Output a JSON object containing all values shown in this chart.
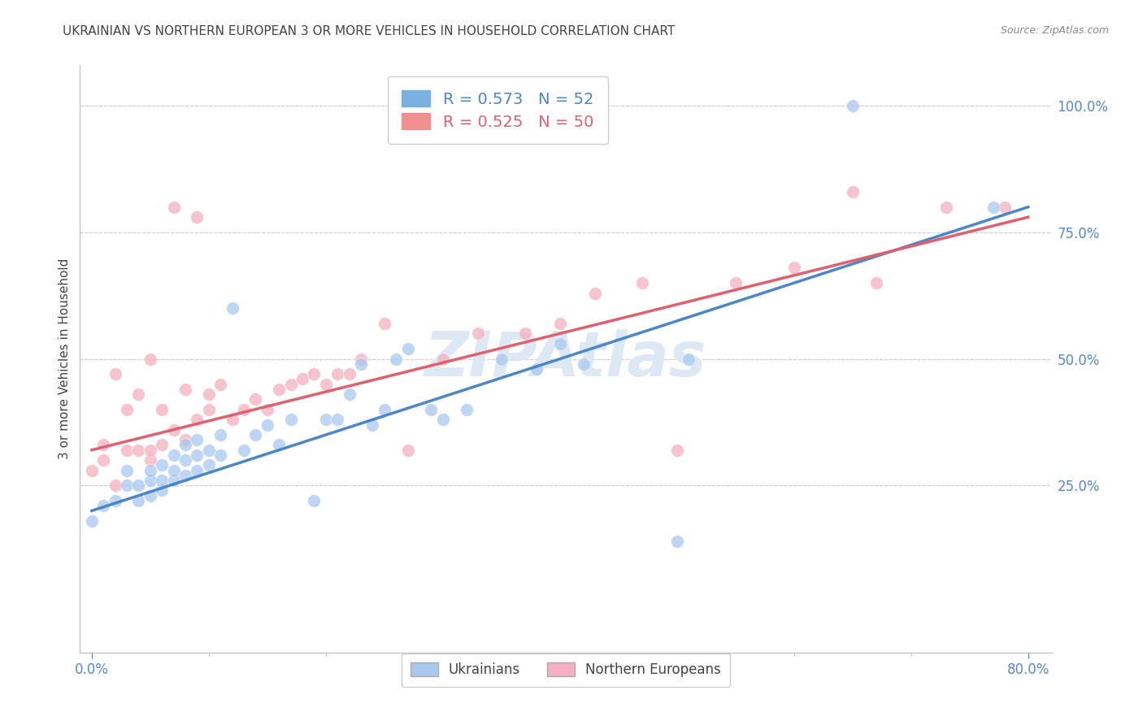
{
  "title": "UKRAINIAN VS NORTHERN EUROPEAN 3 OR MORE VEHICLES IN HOUSEHOLD CORRELATION CHART",
  "source": "Source: ZipAtlas.com",
  "ylabel": "3 or more Vehicles in Household",
  "ytick_labels": [
    "25.0%",
    "50.0%",
    "75.0%",
    "100.0%"
  ],
  "ytick_values": [
    0.25,
    0.5,
    0.75,
    1.0
  ],
  "xtick_labels": [
    "0.0%",
    "80.0%"
  ],
  "xtick_values": [
    0.0,
    0.8
  ],
  "xlim": [
    -0.01,
    0.82
  ],
  "ylim": [
    -0.08,
    1.08
  ],
  "legend_color1": "#7ab0e0",
  "legend_color2": "#f09090",
  "line_color1": "#4a86c8",
  "line_color2": "#e06070",
  "scatter_color1": "#a8c8f0",
  "scatter_color2": "#f4b0c0",
  "watermark_color": "#dde8f5",
  "background_color": "#ffffff",
  "grid_color": "#cccccc",
  "axis_label_color": "#5588cc",
  "ukr_line_start_y": 0.2,
  "ukr_line_end_y": 0.8,
  "ne_line_start_y": 0.32,
  "ne_line_end_y": 0.78,
  "ukrainians_x": [
    0.0,
    0.01,
    0.02,
    0.03,
    0.03,
    0.04,
    0.04,
    0.05,
    0.05,
    0.05,
    0.06,
    0.06,
    0.06,
    0.07,
    0.07,
    0.07,
    0.08,
    0.08,
    0.08,
    0.09,
    0.09,
    0.09,
    0.1,
    0.1,
    0.11,
    0.11,
    0.12,
    0.13,
    0.14,
    0.15,
    0.16,
    0.17,
    0.19,
    0.2,
    0.21,
    0.22,
    0.23,
    0.24,
    0.25,
    0.26,
    0.27,
    0.29,
    0.3,
    0.32,
    0.35,
    0.38,
    0.4,
    0.42,
    0.5,
    0.51,
    0.65,
    0.77
  ],
  "ukrainians_y": [
    0.18,
    0.21,
    0.22,
    0.25,
    0.28,
    0.22,
    0.25,
    0.23,
    0.26,
    0.28,
    0.24,
    0.26,
    0.29,
    0.26,
    0.28,
    0.31,
    0.27,
    0.3,
    0.33,
    0.28,
    0.31,
    0.34,
    0.29,
    0.32,
    0.31,
    0.35,
    0.6,
    0.32,
    0.35,
    0.37,
    0.33,
    0.38,
    0.22,
    0.38,
    0.38,
    0.43,
    0.49,
    0.37,
    0.4,
    0.5,
    0.52,
    0.4,
    0.38,
    0.4,
    0.5,
    0.48,
    0.53,
    0.49,
    0.14,
    0.5,
    1.0,
    0.8
  ],
  "northern_europeans_x": [
    0.0,
    0.01,
    0.01,
    0.02,
    0.02,
    0.03,
    0.03,
    0.04,
    0.04,
    0.05,
    0.05,
    0.05,
    0.06,
    0.06,
    0.07,
    0.07,
    0.08,
    0.08,
    0.09,
    0.09,
    0.1,
    0.1,
    0.11,
    0.12,
    0.13,
    0.14,
    0.15,
    0.16,
    0.17,
    0.18,
    0.19,
    0.2,
    0.21,
    0.22,
    0.23,
    0.25,
    0.27,
    0.3,
    0.33,
    0.37,
    0.4,
    0.43,
    0.47,
    0.5,
    0.55,
    0.6,
    0.65,
    0.67,
    0.73,
    0.78
  ],
  "northern_europeans_y": [
    0.28,
    0.3,
    0.33,
    0.25,
    0.47,
    0.32,
    0.4,
    0.32,
    0.43,
    0.3,
    0.32,
    0.5,
    0.33,
    0.4,
    0.36,
    0.8,
    0.34,
    0.44,
    0.38,
    0.78,
    0.4,
    0.43,
    0.45,
    0.38,
    0.4,
    0.42,
    0.4,
    0.44,
    0.45,
    0.46,
    0.47,
    0.45,
    0.47,
    0.47,
    0.5,
    0.57,
    0.32,
    0.5,
    0.55,
    0.55,
    0.57,
    0.63,
    0.65,
    0.32,
    0.65,
    0.68,
    0.83,
    0.65,
    0.8,
    0.8
  ]
}
